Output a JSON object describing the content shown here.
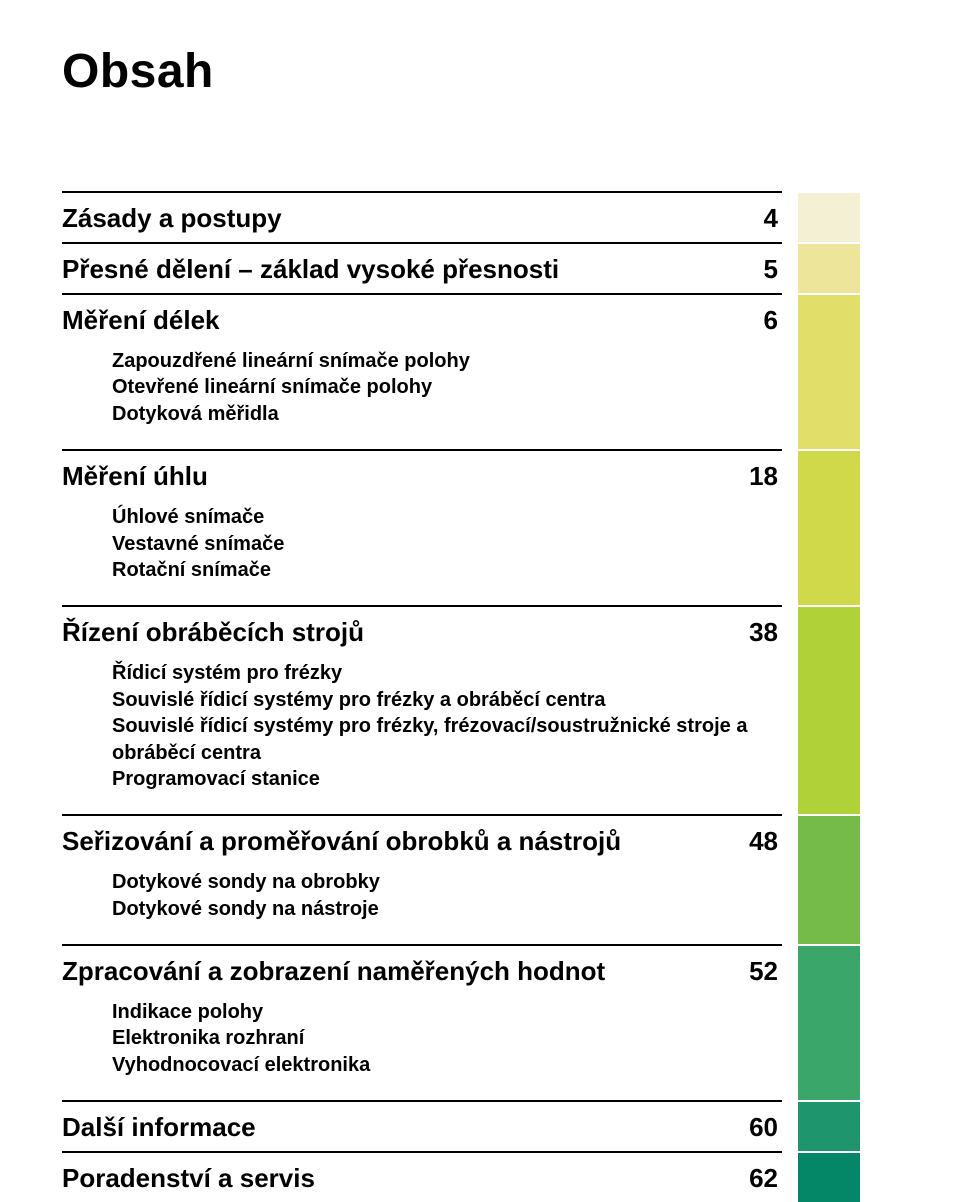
{
  "title": "Obsah",
  "sections": [
    {
      "title": "Zásady a postupy",
      "page": "4",
      "chip_color": "#f4f0d4",
      "subs": []
    },
    {
      "title": "Přesné dělení – základ vysoké přesnosti",
      "page": "5",
      "chip_color": "#ece59a",
      "subs": []
    },
    {
      "title": "Měření délek",
      "page": "6",
      "chip_color": "#e2de6a",
      "subs": [
        "Zapouzdřené lineární snímače polohy",
        "Otevřené lineární snímače polohy",
        "Dotyková měřidla"
      ]
    },
    {
      "title": "Měření úhlu",
      "page": "18",
      "chip_color": "#cfd949",
      "subs": [
        "Úhlové snímače",
        "Vestavné snímače",
        "Rotační snímače"
      ]
    },
    {
      "title": "Řízení obráběcích strojů",
      "page": "38",
      "chip_color": "#b1d138",
      "subs": [
        "Řídicí systém pro frézky",
        "Souvislé řídicí systémy pro frézky a obráběcí centra",
        "Souvislé řídicí systémy pro frézky, frézovací/soustružnické stroje a obráběcí centra",
        "Programovací stanice"
      ]
    },
    {
      "title": "Seřizování a proměřování obrobků a nástrojů",
      "page": "48",
      "chip_color": "#74bb4a",
      "subs": [
        "Dotykové sondy na obrobky",
        "Dotykové sondy na nástroje"
      ]
    },
    {
      "title": "Zpracování a zobrazení naměřených hodnot",
      "page": "52",
      "chip_color": "#3ba66a",
      "subs": [
        "Indikace polohy",
        "Elektronika rozhraní",
        "Vyhodnocovací elektronika"
      ]
    },
    {
      "title": "Další informace",
      "page": "60",
      "chip_color": "#1f956e",
      "subs": []
    },
    {
      "title": "Poradenství a servis",
      "page": "62",
      "chip_color": "#048767",
      "subs": []
    }
  ]
}
